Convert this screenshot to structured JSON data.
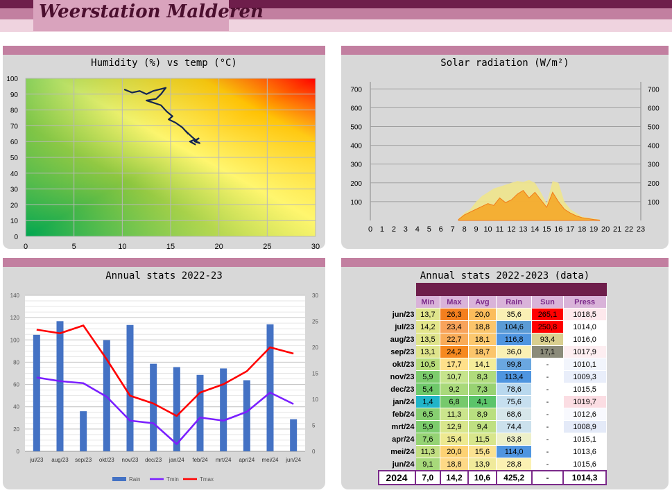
{
  "header": {
    "site_title": "Weerstation Malderen"
  },
  "panels": {
    "p1": {
      "title": "Humidity (%) vs temp (°C)"
    },
    "p2": {
      "title": "Solar radiation (W/m²)"
    },
    "p3": {
      "title": "Annual stats 2022-23"
    },
    "p4": {
      "title": "Annual stats 2022-2023 (data)"
    }
  },
  "chart_data": [
    {
      "type": "line",
      "title": "Humidity (%) vs temp (°C)",
      "xlim": [
        0,
        30
      ],
      "ylim": [
        0,
        100
      ],
      "x_ticks": [
        0,
        5,
        10,
        15,
        20,
        25,
        30
      ],
      "y_ticks": [
        0,
        10,
        20,
        30,
        40,
        50,
        60,
        70,
        80,
        90,
        100
      ],
      "grid": true,
      "background": "gradient green to red",
      "series": [
        {
          "color": "#14254f",
          "x": [
            10.2,
            11.0,
            11.8,
            12.5,
            13.2,
            14.5,
            14.0,
            13.5,
            12.5,
            13.0,
            14.0,
            14.6,
            15.2,
            14.8,
            15.5,
            16.2,
            16.8,
            16.5,
            17.2,
            17.6,
            17.9,
            17.5,
            18.0,
            17.4,
            17.0,
            17.6
          ],
          "y": [
            93,
            91,
            92,
            90,
            92,
            94,
            90,
            87,
            86,
            85,
            83,
            79,
            76,
            74,
            72,
            69,
            65,
            67,
            63,
            61,
            62,
            60,
            59,
            61,
            60,
            58
          ]
        }
      ]
    },
    {
      "type": "area",
      "title": "Solar radiation (W/m²)",
      "x_ticks": [
        0,
        1,
        2,
        3,
        4,
        5,
        6,
        7,
        8,
        9,
        10,
        11,
        12,
        13,
        14,
        15,
        16,
        17,
        18,
        19,
        20,
        21,
        22,
        23
      ],
      "y_ticks": [
        100,
        200,
        300,
        400,
        500,
        600,
        700
      ],
      "xlim": [
        0,
        23
      ],
      "ylim": [
        0,
        760
      ],
      "grid": true,
      "series": [
        {
          "color": "#f0e68c",
          "x": [
            7.5,
            8,
            8.5,
            9,
            9.5,
            10,
            10.5,
            11,
            11.5,
            12,
            12.5,
            13,
            13.5,
            14,
            14.5,
            15,
            15.5,
            16,
            16.5,
            17,
            17.5,
            18,
            18.5,
            19,
            19.5
          ],
          "y": [
            10,
            40,
            60,
            100,
            130,
            150,
            170,
            180,
            190,
            200,
            210,
            205,
            215,
            200,
            150,
            90,
            210,
            200,
            100,
            60,
            40,
            20,
            15,
            10,
            5
          ]
        },
        {
          "color": "#f5a623",
          "x": [
            7.5,
            8,
            8.5,
            9,
            9.5,
            10,
            10.5,
            11,
            11.5,
            12,
            12.5,
            13,
            13.5,
            14,
            14.5,
            15,
            15.5,
            16,
            16.5,
            17,
            17.5,
            18,
            18.5,
            19,
            19.5
          ],
          "y": [
            5,
            30,
            45,
            60,
            75,
            90,
            80,
            120,
            95,
            110,
            140,
            160,
            120,
            150,
            110,
            70,
            150,
            100,
            60,
            40,
            25,
            15,
            10,
            5,
            2
          ]
        }
      ]
    },
    {
      "type": "bar",
      "title": "Annual stats 2022-23",
      "categories": [
        "jul/23",
        "aug/23",
        "sep/23",
        "okt/23",
        "nov/23",
        "dec/23",
        "jan/24",
        "feb/24",
        "mrt/24",
        "apr/24",
        "mei/24",
        "jun/24"
      ],
      "ylim": [
        0,
        140
      ],
      "y2lim": [
        0,
        30
      ],
      "y_ticks": [
        0,
        20,
        40,
        60,
        80,
        100,
        120,
        140
      ],
      "y2_ticks": [
        0,
        5,
        10,
        15,
        20,
        25,
        30
      ],
      "legend": "bottom",
      "series": [
        {
          "name": "Rain",
          "type": "bar",
          "axis": "left",
          "color": "#4472c4",
          "values": [
            104.6,
            116.8,
            36.0,
            99.8,
            113.4,
            78.6,
            75.6,
            68.6,
            74.4,
            63.8,
            114.0,
            28.8
          ]
        },
        {
          "name": "Tmin",
          "type": "line",
          "axis": "right",
          "color": "#7a1fff",
          "values": [
            14.2,
            13.5,
            13.1,
            10.5,
            5.9,
            5.4,
            1.4,
            6.5,
            5.9,
            7.6,
            11.3,
            9.1
          ]
        },
        {
          "name": "Tmax",
          "type": "line",
          "axis": "right",
          "color": "#ff0000",
          "values": [
            23.4,
            22.7,
            24.2,
            17.7,
            10.7,
            9.2,
            6.8,
            11.3,
            12.9,
            15.4,
            20.0,
            18.8
          ]
        }
      ]
    },
    {
      "type": "table",
      "title": "Annual stats 2022-2023 (data)",
      "columns": [
        "Min",
        "Max",
        "Avg",
        "Rain",
        "Sun",
        "Press"
      ],
      "rows": [
        {
          "label": "jun/23",
          "values": [
            "13,7",
            "26,3",
            "20,0",
            "35,6",
            "265,1",
            "1018,5"
          ],
          "colors": [
            "#dfe48b",
            "#f47f1e",
            "#fbbd5c",
            "#faf0b4",
            "#ff0000",
            "#fde8ec"
          ]
        },
        {
          "label": "jul/23",
          "values": [
            "14,2",
            "23,4",
            "18,8",
            "104,6",
            "250,8",
            "1014,0"
          ],
          "colors": [
            "#e3e58b",
            "#f8a35b",
            "#fbc56b",
            "#5b9bd5",
            "#ff0000",
            "#ffffff"
          ]
        },
        {
          "label": "aug/23",
          "values": [
            "13,5",
            "22,7",
            "18,1",
            "116,8",
            "93,4",
            "1016,0"
          ],
          "colors": [
            "#dfe48b",
            "#f9ab57",
            "#fcc86e",
            "#4f95e0",
            "#d9cf8f",
            "#ffffff"
          ]
        },
        {
          "label": "sep/23",
          "values": [
            "13,1",
            "24,2",
            "18,7",
            "36,0",
            "17,1",
            "1017,9"
          ],
          "colors": [
            "#dfe48b",
            "#f6891f",
            "#fbc56b",
            "#faf0b4",
            "#8b8b7a",
            "#fdeef1"
          ]
        },
        {
          "label": "okt/23",
          "values": [
            "10,5",
            "17,7",
            "14,1",
            "99,8",
            "-",
            "1010,1"
          ],
          "colors": [
            "#b7dc7a",
            "#ffe08a",
            "#f4ec9a",
            "#6aa7e0",
            "#ffffff",
            "#f2f5fc"
          ]
        },
        {
          "label": "nov/23",
          "values": [
            "5,9",
            "10,7",
            "8,3",
            "113,4",
            "-",
            "1009,3"
          ],
          "colors": [
            "#7dcc6d",
            "#c6e48c",
            "#b0db7c",
            "#4f95e0",
            "#ffffff",
            "#e9eefa"
          ]
        },
        {
          "label": "dec/23",
          "values": [
            "5,4",
            "9,2",
            "7,3",
            "78,6",
            "-",
            "1015,5"
          ],
          "colors": [
            "#6ec86a",
            "#a9d97a",
            "#98d272",
            "#b9d8ee",
            "#ffffff",
            "#ffffff"
          ]
        },
        {
          "label": "jan/24",
          "values": [
            "1,4",
            "6,8",
            "4,1",
            "75,6",
            "-",
            "1019,7"
          ],
          "colors": [
            "#20b4c8",
            "#76c96c",
            "#5bc46a",
            "#c6dfef",
            "#ffffff",
            "#fbdde3"
          ]
        },
        {
          "label": "feb/24",
          "values": [
            "6,5",
            "11,3",
            "8,9",
            "68,6",
            "-",
            "1012,6"
          ],
          "colors": [
            "#86cf70",
            "#cbe58c",
            "#b9df80",
            "#d6e6ea",
            "#ffffff",
            "#f8f9fe"
          ]
        },
        {
          "label": "mrt/24",
          "values": [
            "5,9",
            "12,9",
            "9,4",
            "74,4",
            "-",
            "1008,9"
          ],
          "colors": [
            "#7dcc6d",
            "#d8e68c",
            "#bfe082",
            "#cbe1ed",
            "#ffffff",
            "#e4eaf8"
          ]
        },
        {
          "label": "apr/24",
          "values": [
            "7,6",
            "15,4",
            "11,5",
            "63,8",
            "-",
            "1015,1"
          ],
          "colors": [
            "#95d374",
            "#ede990",
            "#d8e68c",
            "#edf0c9",
            "#ffffff",
            "#ffffff"
          ]
        },
        {
          "label": "mei/24",
          "values": [
            "11,3",
            "20,0",
            "15,6",
            "114,0",
            "-",
            "1013,6"
          ],
          "colors": [
            "#c2df82",
            "#fdd274",
            "#fbe291",
            "#4f95e0",
            "#ffffff",
            "#ffffff"
          ]
        },
        {
          "label": "jun/24",
          "values": [
            "9,1",
            "18,8",
            "13,9",
            "28,8",
            "-",
            "1015,6"
          ],
          "colors": [
            "#a7d97a",
            "#fed986",
            "#f0ea9b",
            "#fbf1b2",
            "#ffffff",
            "#ffffff"
          ]
        }
      ],
      "total": {
        "label": "2024",
        "values": [
          "7,0",
          "14,2",
          "10,6",
          "425,2",
          "-",
          "1014,3"
        ]
      }
    }
  ]
}
